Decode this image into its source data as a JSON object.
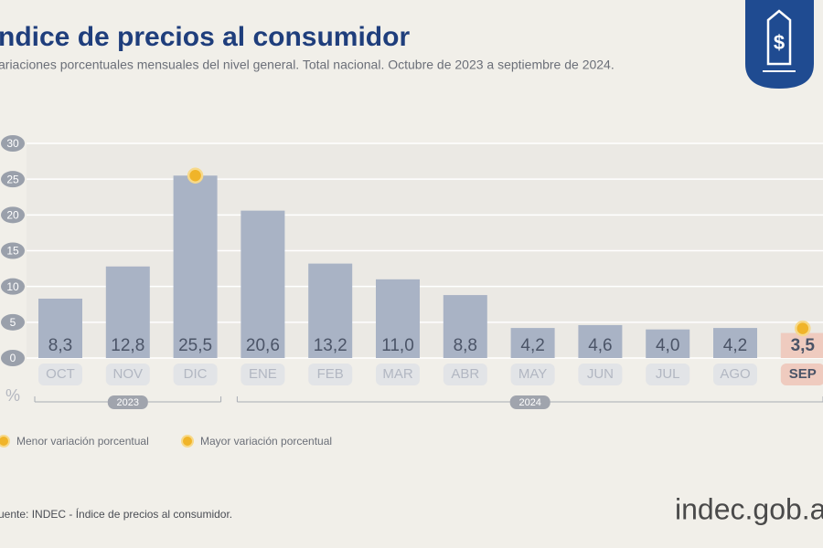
{
  "chart_data": {
    "type": "bar",
    "title": "ndice de precios al consumidor",
    "subtitle": "ariaciones porcentuales mensuales del nivel general. Total nacional. Octubre de 2023 a septiembre de 2024.",
    "y_label": "%",
    "categories": [
      "OCT",
      "NOV",
      "DIC",
      "ENE",
      "FEB",
      "MAR",
      "ABR",
      "MAY",
      "JUN",
      "JUL",
      "AGO",
      "SEP"
    ],
    "values": [
      8.3,
      12.8,
      25.5,
      20.6,
      13.2,
      11.0,
      8.8,
      4.2,
      4.6,
      4.0,
      4.2,
      3.5
    ],
    "value_labels": [
      "8,3",
      "12,8",
      "25,5",
      "20,6",
      "13,2",
      "11,0",
      "8,8",
      "4,2",
      "4,6",
      "4,0",
      "4,2",
      "3,5"
    ],
    "colors": [
      "#a9b3c5",
      "#a9b3c5",
      "#a9b3c5",
      "#a9b3c5",
      "#a9b3c5",
      "#a9b3c5",
      "#a9b3c5",
      "#a9b3c5",
      "#a9b3c5",
      "#a9b3c5",
      "#a9b3c5",
      "#efcbbf"
    ],
    "ylim": [
      0,
      30
    ],
    "yticks": [
      0,
      5,
      10,
      15,
      20,
      25,
      30
    ],
    "grid": true,
    "groups": [
      {
        "label": "2023",
        "count": 3
      },
      {
        "label": "2024",
        "count": 9
      }
    ],
    "legend": [
      {
        "name": "Menor variación porcentual",
        "color": "#f0b429"
      },
      {
        "name": "Mayor variación porcentual",
        "color": "#f0b429"
      }
    ],
    "source": "uente: INDEC - Índice de precios al consumidor.",
    "brand": "indec.gob.ar"
  }
}
